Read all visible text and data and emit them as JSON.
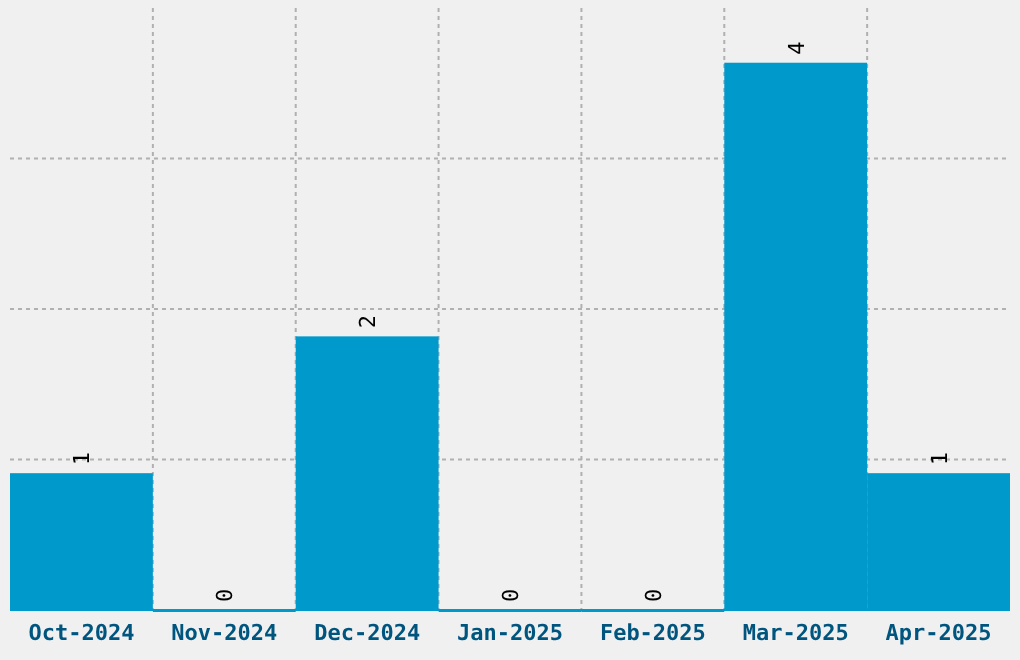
{
  "chart_data": {
    "type": "bar",
    "categories": [
      "Oct-2024",
      "Nov-2024",
      "Dec-2024",
      "Jan-2025",
      "Feb-2025",
      "Mar-2025",
      "Apr-2025"
    ],
    "values": [
      1,
      0,
      2,
      0,
      0,
      4,
      1
    ],
    "color": "#0099cc",
    "data_labels": true,
    "grid": true,
    "tick_labels": "x",
    "ylim": [
      0,
      4.4
    ],
    "yticks": [
      {
        "value": 1.1,
        "label": null
      },
      {
        "value": 2.2,
        "label": null
      },
      {
        "value": 3.3,
        "label": null
      }
    ]
  }
}
